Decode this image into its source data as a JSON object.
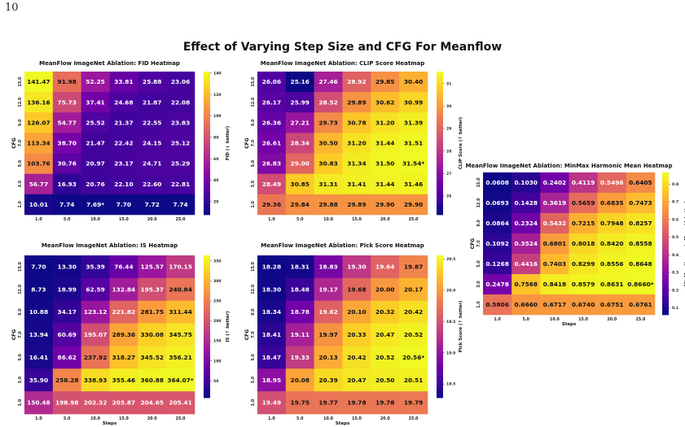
{
  "page": {
    "number": "10",
    "title": "Effect of Varying Step Size and CFG  For Meanflow"
  },
  "palette": [
    "#0d0887",
    "#46039f",
    "#7201a8",
    "#9c179e",
    "#bd3786",
    "#d8576b",
    "#ed7953",
    "#fb9f3a",
    "#fdca26",
    "#f0f921"
  ],
  "chart_data": [
    {
      "type": "heatmap",
      "title": "MeanFlow ImageNet Ablation: FID Heatmap",
      "xlabel": "",
      "ylabel": "CFG",
      "x_tick_labels": [
        "1.0",
        "5.0",
        "10.0",
        "15.0",
        "20.0",
        "25.0"
      ],
      "y_tick_labels": [
        "15.0",
        "12.0",
        "9.0",
        "7.0",
        "5.0",
        "3.0",
        "1.0"
      ],
      "cells": [
        [
          "141.47",
          "91.98",
          "52.25",
          "33.81",
          "25.88",
          "23.06"
        ],
        [
          "136.16",
          "75.73",
          "37.41",
          "24.68",
          "21.87",
          "22.08"
        ],
        [
          "126.07",
          "54.77",
          "25.52",
          "21.37",
          "22.55",
          "23.83"
        ],
        [
          "113.34",
          "38.70",
          "21.47",
          "22.42",
          "24.15",
          "25.12"
        ],
        [
          "103.76",
          "30.76",
          "20.97",
          "23.17",
          "24.71",
          "25.29"
        ],
        [
          "56.77",
          "16.93",
          "20.76",
          "22.10",
          "22.60",
          "22.81"
        ],
        [
          "10.01",
          "7.74",
          "7.69*",
          "7.70",
          "7.72",
          "7.74"
        ]
      ],
      "colorbar": {
        "label": "FID (↓ better)",
        "ticks": [
          "140",
          "120",
          "100",
          "80",
          "60",
          "40",
          "20"
        ],
        "range": [
          7.69,
          141.47
        ]
      }
    },
    {
      "type": "heatmap",
      "title": "MeanFlow ImageNet Ablation: CLIP Score Heatmap",
      "xlabel": "",
      "ylabel": "CFG",
      "x_tick_labels": [
        "1.0",
        "5.0",
        "10.0",
        "15.0",
        "20.0",
        "25.0"
      ],
      "y_tick_labels": [
        "15.0",
        "12.0",
        "9.0",
        "7.0",
        "5.0",
        "3.0",
        "1.0"
      ],
      "cells": [
        [
          "26.06",
          "25.16",
          "27.46",
          "28.92",
          "29.85",
          "30.40"
        ],
        [
          "26.17",
          "25.99",
          "28.52",
          "29.89",
          "30.62",
          "30.99"
        ],
        [
          "26.36",
          "27.21",
          "29.73",
          "30.78",
          "31.20",
          "31.39"
        ],
        [
          "26.61",
          "28.34",
          "30.50",
          "31.20",
          "31.44",
          "31.51"
        ],
        [
          "26.83",
          "29.00",
          "30.83",
          "31.34",
          "31.50",
          "31.54*"
        ],
        [
          "28.49",
          "30.85",
          "31.31",
          "31.41",
          "31.44",
          "31.46"
        ],
        [
          "29.36",
          "29.84",
          "29.88",
          "29.89",
          "29.90",
          "29.90"
        ]
      ],
      "colorbar": {
        "label": "CLIP Score (↑ better)",
        "ticks": [
          "31",
          "30",
          "29",
          "28",
          "27",
          "26"
        ],
        "range": [
          25.16,
          31.54
        ]
      }
    },
    {
      "type": "heatmap",
      "title": "MeanFlow ImageNet Ablation: MinMax Harmonic Mean Heatmap",
      "xlabel": "Steps",
      "ylabel": "CFG",
      "x_tick_labels": [
        "1.0",
        "5.0",
        "10.0",
        "15.0",
        "20.0",
        "25.0"
      ],
      "y_tick_labels": [
        "15.0",
        "12.0",
        "9.0",
        "7.0",
        "5.0",
        "3.0",
        "1.0"
      ],
      "cells": [
        [
          "0.0608",
          "0.1030",
          "0.2402",
          "0.4119",
          "0.5496",
          "0.6405"
        ],
        [
          "0.0693",
          "0.1428",
          "0.3619",
          "0.5659",
          "0.6835",
          "0.7473"
        ],
        [
          "0.0864",
          "0.2324",
          "0.5432",
          "0.7215",
          "0.7948",
          "0.8257"
        ],
        [
          "0.1092",
          "0.3524",
          "0.6801",
          "0.8018",
          "0.8420",
          "0.8558"
        ],
        [
          "0.1268",
          "0.4416",
          "0.7403",
          "0.8299",
          "0.8556",
          "0.8648"
        ],
        [
          "0.2478",
          "0.7568",
          "0.8418",
          "0.8579",
          "0.8631",
          "0.8660*"
        ],
        [
          "0.5806",
          "0.6660",
          "0.6717",
          "0.6740",
          "0.6751",
          "0.6761"
        ]
      ],
      "colorbar": {
        "label": "MinMax Harmonic Mean (↑ better)",
        "ticks": [
          "0.8",
          "0.7",
          "0.6",
          "0.5",
          "0.4",
          "0.3",
          "0.2",
          "0.1"
        ],
        "range": [
          0.0608,
          0.866
        ]
      }
    },
    {
      "type": "heatmap",
      "title": "MeanFlow ImageNet Ablation: IS Heatmap",
      "xlabel": "Steps",
      "ylabel": "CFG",
      "x_tick_labels": [
        "1.0",
        "5.0",
        "10.0",
        "15.0",
        "20.0",
        "25.0"
      ],
      "y_tick_labels": [
        "15.0",
        "12.0",
        "9.0",
        "7.0",
        "5.0",
        "3.0",
        "1.0"
      ],
      "cells": [
        [
          "7.70",
          "13.30",
          "35.39",
          "76.44",
          "125.57",
          "170.15"
        ],
        [
          "8.73",
          "18.99",
          "62.59",
          "132.84",
          "195.37",
          "240.84"
        ],
        [
          "10.88",
          "34.17",
          "123.12",
          "221.82",
          "281.75",
          "311.44"
        ],
        [
          "13.94",
          "60.69",
          "195.07",
          "289.36",
          "330.08",
          "345.75"
        ],
        [
          "16.41",
          "86.62",
          "237.92",
          "318.27",
          "345.52",
          "356.21"
        ],
        [
          "35.90",
          "258.28",
          "338.93",
          "355.46",
          "360.88",
          "364.07*"
        ],
        [
          "150.48",
          "198.98",
          "202.32",
          "203.87",
          "204.65",
          "205.41"
        ]
      ],
      "colorbar": {
        "label": "IS (↑ better)",
        "ticks": [
          "350",
          "300",
          "250",
          "200",
          "150",
          "100",
          "50"
        ],
        "range": [
          7.7,
          364.07
        ]
      }
    },
    {
      "type": "heatmap",
      "title": "MeanFlow ImageNet Ablation: Pick Score Heatmap",
      "xlabel": "Steps",
      "ylabel": "CFG",
      "x_tick_labels": [
        "1.0",
        "5.0",
        "10.0",
        "15.0",
        "20.0",
        "25.0"
      ],
      "y_tick_labels": [
        "15.0",
        "12.0",
        "9.0",
        "7.0",
        "5.0",
        "3.0",
        "1.0"
      ],
      "cells": [
        [
          "18.28",
          "18.31",
          "18.83",
          "19.30",
          "19.64",
          "19.87"
        ],
        [
          "18.30",
          "18.48",
          "19.17",
          "19.68",
          "20.00",
          "20.17"
        ],
        [
          "18.34",
          "18.78",
          "19.62",
          "20.10",
          "20.32",
          "20.42"
        ],
        [
          "18.41",
          "19.11",
          "19.97",
          "20.33",
          "20.47",
          "20.52"
        ],
        [
          "18.47",
          "19.33",
          "20.13",
          "20.42",
          "20.52",
          "20.56*"
        ],
        [
          "18.95",
          "20.08",
          "20.39",
          "20.47",
          "20.50",
          "20.51"
        ],
        [
          "19.49",
          "19.75",
          "19.77",
          "19.78",
          "19.78",
          "19.79"
        ]
      ],
      "colorbar": {
        "label": "Pick Score (↑ better)",
        "ticks": [
          "20.5",
          "20.0",
          "19.5",
          "19.0",
          "18.5"
        ],
        "range": [
          18.28,
          20.56
        ]
      }
    }
  ]
}
